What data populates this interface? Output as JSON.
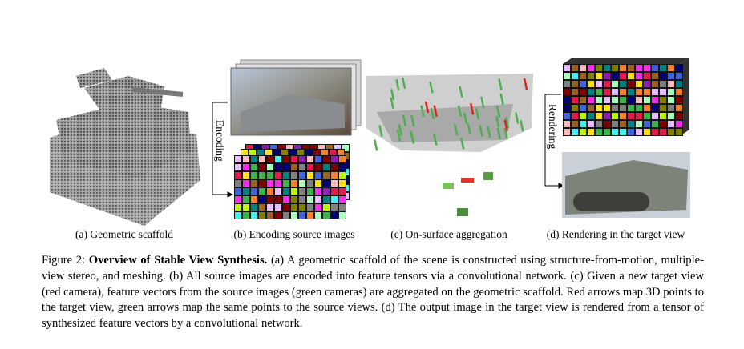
{
  "figure": {
    "panels": [
      {
        "caption": "(a) Geometric scaffold"
      },
      {
        "caption": "(b) Encoding source images",
        "arrow_label": "Encoding"
      },
      {
        "caption": "(c) On-surface aggregation"
      },
      {
        "caption": "(d) Rendering in the target view",
        "arrow_label": "Rendering"
      }
    ],
    "caption": {
      "label": "Figure 2:",
      "title": "Overview of Stable View Synthesis.",
      "text": "(a) A geometric scaffold of the scene is constructed using structure-from-motion, multiple-view stereo, and meshing. (b) All source images are encoded into feature tensors via a convolutional network. (c) Given a new target view (red camera), feature vectors from the source images (green cameras) are aggregated on the geometric scaffold. Red arrows map 3D points to the target view, green arrows map the same points to the source views. (d) The output image in the target view is rendered from a tensor of synthesized feature vectors by a convolutional network."
    }
  }
}
